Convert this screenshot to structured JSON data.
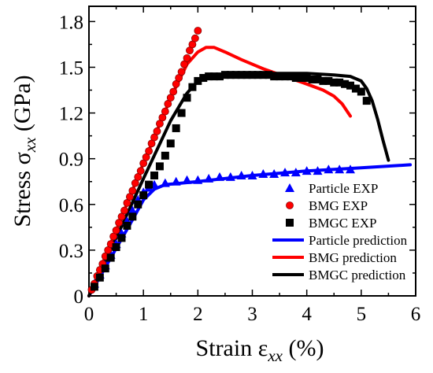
{
  "chart_data": {
    "type": "scatter",
    "title": "",
    "xlabel": "Strain ε",
    "xlabel_sub": "xx",
    "xlabel_unit": " (%)",
    "ylabel": "Stress σ",
    "ylabel_sub": "xx",
    "ylabel_unit": " (GPa)",
    "xlim": [
      0,
      6
    ],
    "ylim": [
      0,
      1.9
    ],
    "xticks": [
      "0",
      "1",
      "2",
      "3",
      "4",
      "5",
      "6"
    ],
    "yticks": [
      "0",
      "0.3",
      "0.6",
      "0.9",
      "1.2",
      "1.5",
      "1.8"
    ],
    "grid": false,
    "legend_position": "bottom-right",
    "series": [
      {
        "name": "Particle EXP",
        "kind": "markers",
        "marker": "triangle",
        "color": "#0000ff",
        "x": [
          0.1,
          0.2,
          0.3,
          0.4,
          0.5,
          0.6,
          0.7,
          0.8,
          0.9,
          1.0,
          1.1,
          1.2,
          1.4,
          1.6,
          1.8,
          2.0,
          2.2,
          2.4,
          2.6,
          2.8,
          3.0,
          3.2,
          3.4,
          3.6,
          3.8,
          4.0,
          4.2,
          4.4,
          4.6,
          4.8
        ],
        "y": [
          0.08,
          0.14,
          0.2,
          0.27,
          0.34,
          0.41,
          0.49,
          0.56,
          0.63,
          0.68,
          0.71,
          0.73,
          0.74,
          0.75,
          0.76,
          0.76,
          0.77,
          0.78,
          0.78,
          0.79,
          0.79,
          0.8,
          0.8,
          0.81,
          0.81,
          0.82,
          0.82,
          0.83,
          0.83,
          0.83
        ]
      },
      {
        "name": "BMG EXP",
        "kind": "markers",
        "marker": "circle",
        "color": "#ff0000",
        "x": [
          0.05,
          0.1,
          0.15,
          0.2,
          0.25,
          0.3,
          0.35,
          0.4,
          0.45,
          0.5,
          0.55,
          0.6,
          0.65,
          0.7,
          0.75,
          0.8,
          0.85,
          0.9,
          0.95,
          1.0,
          1.05,
          1.1,
          1.15,
          1.2,
          1.25,
          1.3,
          1.35,
          1.4,
          1.45,
          1.5,
          1.55,
          1.6,
          1.65,
          1.7,
          1.75,
          1.8,
          1.85,
          1.9,
          1.95,
          2.0
        ],
        "y": [
          0.04,
          0.08,
          0.13,
          0.17,
          0.21,
          0.26,
          0.3,
          0.34,
          0.39,
          0.43,
          0.48,
          0.52,
          0.56,
          0.61,
          0.65,
          0.69,
          0.74,
          0.78,
          0.82,
          0.87,
          0.91,
          0.95,
          1.0,
          1.04,
          1.08,
          1.13,
          1.17,
          1.21,
          1.26,
          1.3,
          1.34,
          1.39,
          1.43,
          1.47,
          1.52,
          1.56,
          1.61,
          1.65,
          1.69,
          1.74
        ]
      },
      {
        "name": "BMGC EXP",
        "kind": "markers",
        "marker": "square",
        "color": "#000000",
        "x": [
          0.1,
          0.2,
          0.3,
          0.4,
          0.5,
          0.6,
          0.7,
          0.8,
          0.9,
          1.0,
          1.1,
          1.2,
          1.3,
          1.4,
          1.5,
          1.6,
          1.7,
          1.8,
          1.9,
          2.0,
          2.1,
          2.2,
          2.3,
          2.4,
          2.5,
          2.6,
          2.7,
          2.8,
          2.9,
          3.0,
          3.1,
          3.2,
          3.3,
          3.4,
          3.5,
          3.6,
          3.7,
          3.8,
          3.9,
          4.0,
          4.1,
          4.2,
          4.3,
          4.4,
          4.5,
          4.6,
          4.7,
          4.8,
          4.9,
          5.0,
          5.1
        ],
        "y": [
          0.06,
          0.12,
          0.18,
          0.25,
          0.32,
          0.38,
          0.46,
          0.52,
          0.6,
          0.66,
          0.73,
          0.79,
          0.85,
          0.92,
          1.0,
          1.1,
          1.2,
          1.3,
          1.37,
          1.41,
          1.43,
          1.44,
          1.44,
          1.44,
          1.45,
          1.45,
          1.45,
          1.45,
          1.45,
          1.45,
          1.45,
          1.45,
          1.45,
          1.44,
          1.44,
          1.44,
          1.44,
          1.43,
          1.43,
          1.43,
          1.42,
          1.42,
          1.41,
          1.41,
          1.4,
          1.4,
          1.39,
          1.38,
          1.36,
          1.34,
          1.28
        ]
      },
      {
        "name": "Particle prediction",
        "kind": "line",
        "color": "#0000ff",
        "x": [
          0,
          0.4,
          0.8,
          1.0,
          1.2,
          1.4,
          2.0,
          3.0,
          4.0,
          5.0,
          5.9
        ],
        "y": [
          0,
          0.25,
          0.5,
          0.63,
          0.7,
          0.73,
          0.75,
          0.79,
          0.82,
          0.84,
          0.86
        ]
      },
      {
        "name": "BMG prediction",
        "kind": "line",
        "color": "#ff0000",
        "x": [
          0,
          0.5,
          1.0,
          1.5,
          1.8,
          2.0,
          2.15,
          2.3,
          2.5,
          2.8,
          3.2,
          3.6,
          4.0,
          4.3,
          4.5,
          4.65,
          4.8
        ],
        "y": [
          0,
          0.43,
          0.87,
          1.3,
          1.52,
          1.6,
          1.63,
          1.63,
          1.6,
          1.55,
          1.49,
          1.44,
          1.39,
          1.35,
          1.31,
          1.26,
          1.18
        ]
      },
      {
        "name": "BMGC prediction",
        "kind": "line",
        "color": "#000000",
        "x": [
          0,
          0.5,
          1.0,
          1.5,
          1.8,
          2.0,
          2.2,
          2.5,
          3.0,
          3.5,
          4.0,
          4.5,
          4.8,
          5.0,
          5.1,
          5.2,
          5.3,
          5.4,
          5.5
        ],
        "y": [
          0,
          0.38,
          0.77,
          1.15,
          1.33,
          1.41,
          1.44,
          1.45,
          1.46,
          1.46,
          1.46,
          1.45,
          1.44,
          1.41,
          1.36,
          1.28,
          1.16,
          1.02,
          0.89
        ]
      }
    ]
  }
}
